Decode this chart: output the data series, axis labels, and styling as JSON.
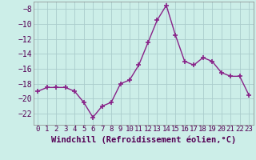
{
  "x": [
    0,
    1,
    2,
    3,
    4,
    5,
    6,
    7,
    8,
    9,
    10,
    11,
    12,
    13,
    14,
    15,
    16,
    17,
    18,
    19,
    20,
    21,
    22,
    23
  ],
  "y": [
    -19.0,
    -18.5,
    -18.5,
    -18.5,
    -19.0,
    -20.5,
    -22.5,
    -21.0,
    -20.5,
    -18.0,
    -17.5,
    -15.5,
    -12.5,
    -9.5,
    -7.5,
    -11.5,
    -15.0,
    -15.5,
    -14.5,
    -15.0,
    -16.5,
    -17.0,
    -17.0,
    -19.5
  ],
  "xlim": [
    -0.5,
    23.5
  ],
  "ylim": [
    -23.5,
    -7.0
  ],
  "yticks": [
    -22,
    -20,
    -18,
    -16,
    -14,
    -12,
    -10,
    -8
  ],
  "xticks": [
    0,
    1,
    2,
    3,
    4,
    5,
    6,
    7,
    8,
    9,
    10,
    11,
    12,
    13,
    14,
    15,
    16,
    17,
    18,
    19,
    20,
    21,
    22,
    23
  ],
  "line_color": "#882288",
  "marker": "+",
  "marker_size": 4,
  "bg_color": "#cceee8",
  "grid_color": "#aacccc",
  "xlabel": "Windchill (Refroidissement éolien,°C)",
  "tick_fontsize": 6.5,
  "xlabel_fontsize": 7.5,
  "line_width": 1.0
}
